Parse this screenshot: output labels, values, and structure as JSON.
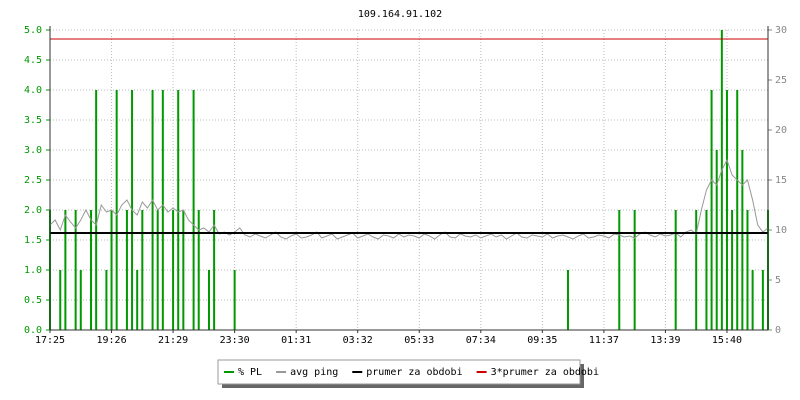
{
  "chart_data": {
    "type": "line",
    "title": "109.164.91.102",
    "categories": [
      "17:25",
      null,
      null,
      null,
      null,
      null,
      null,
      null,
      null,
      null,
      null,
      null,
      "19:26",
      null,
      null,
      null,
      null,
      null,
      null,
      null,
      null,
      null,
      null,
      null,
      "21:29",
      null,
      null,
      null,
      null,
      null,
      null,
      null,
      null,
      null,
      null,
      null,
      "23:30",
      null,
      null,
      null,
      null,
      null,
      null,
      null,
      null,
      null,
      null,
      null,
      "01:31",
      null,
      null,
      null,
      null,
      null,
      null,
      null,
      null,
      null,
      null,
      null,
      "03:32",
      null,
      null,
      null,
      null,
      null,
      null,
      null,
      null,
      null,
      null,
      null,
      "05:33",
      null,
      null,
      null,
      null,
      null,
      null,
      null,
      null,
      null,
      null,
      null,
      "07:34",
      null,
      null,
      null,
      null,
      null,
      null,
      null,
      null,
      null,
      null,
      null,
      "09:35",
      null,
      null,
      null,
      null,
      null,
      null,
      null,
      null,
      null,
      null,
      null,
      "11:37",
      null,
      null,
      null,
      null,
      null,
      null,
      null,
      null,
      null,
      null,
      null,
      "13:39",
      null,
      null,
      null,
      null,
      null,
      null,
      null,
      null,
      null,
      null,
      null,
      "15:40",
      null,
      null,
      null,
      null,
      null,
      null,
      null,
      null
    ],
    "series": [
      {
        "name": "% PL",
        "color": "#009900",
        "type": "bar",
        "values": [
          2,
          0,
          1,
          2,
          0,
          2,
          1,
          0,
          2,
          4,
          0,
          1,
          2,
          4,
          0,
          2,
          4,
          1,
          2,
          0,
          4,
          2,
          4,
          0,
          2,
          4,
          2,
          0,
          4,
          2,
          0,
          1,
          2,
          0,
          0,
          0,
          1,
          0,
          0,
          0,
          0,
          0,
          0,
          0,
          0,
          0,
          0,
          0,
          0,
          0,
          0,
          0,
          0,
          0,
          0,
          0,
          0,
          0,
          0,
          0,
          0,
          0,
          0,
          0,
          0,
          0,
          0,
          0,
          0,
          0,
          0,
          0,
          0,
          0,
          0,
          0,
          0,
          0,
          0,
          0,
          0,
          0,
          0,
          0,
          0,
          0,
          0,
          0,
          0,
          0,
          0,
          0,
          0,
          0,
          0,
          0,
          0,
          0,
          0,
          0,
          0,
          1,
          0,
          0,
          0,
          0,
          0,
          0,
          0,
          0,
          0,
          2,
          0,
          0,
          2,
          0,
          0,
          0,
          0,
          0,
          0,
          0,
          2,
          0,
          0,
          0,
          2,
          0,
          2,
          4,
          3,
          5,
          4,
          2,
          4,
          3,
          2,
          1,
          0,
          1,
          2
        ]
      },
      {
        "name": "avg ping",
        "color": "#999999",
        "type": "line",
        "axis": "y2",
        "values": [
          10.5,
          11,
          10,
          11.5,
          10.8,
          10.2,
          11,
          12,
          11,
          10.5,
          12.5,
          11.8,
          12,
          11.5,
          12.5,
          13,
          12,
          11.5,
          12.8,
          12.2,
          13,
          12,
          12.5,
          11.8,
          12.2,
          11.8,
          12,
          11,
          10.5,
          10,
          10.2,
          9.8,
          10.5,
          9.6,
          9.8,
          9.5,
          9.8,
          10.2,
          9.5,
          9.3,
          9.6,
          9.4,
          9.2,
          9.5,
          9.8,
          9.3,
          9.1,
          9.4,
          9.6,
          9.2,
          9.3,
          9.5,
          9.8,
          9.2,
          9.4,
          9.6,
          9.1,
          9.3,
          9.5,
          9.7,
          9.2,
          9.4,
          9.6,
          9.3,
          9.1,
          9.5,
          9.4,
          9.2,
          9.6,
          9.3,
          9.5,
          9.4,
          9.2,
          9.6,
          9.4,
          9.1,
          9.5,
          9.8,
          9.3,
          9.2,
          9.6,
          9.4,
          9.3,
          9.5,
          9.2,
          9.4,
          9.6,
          9.3,
          9.5,
          9.1,
          9.4,
          9.7,
          9.3,
          9.2,
          9.5,
          9.4,
          9.3,
          9.6,
          9.2,
          9.4,
          9.5,
          9.3,
          9.1,
          9.4,
          9.6,
          9.2,
          9.3,
          9.5,
          9.4,
          9.2,
          9.6,
          9.5,
          9.3,
          9.4,
          9.2,
          9.6,
          9.8,
          9.5,
          9.3,
          9.6,
          9.4,
          9.5,
          9.7,
          9.3,
          9.8,
          10,
          9.6,
          12,
          14,
          15,
          14.5,
          16,
          17,
          15.5,
          15,
          14.5,
          15,
          13,
          10.5,
          9.8,
          10.2
        ]
      },
      {
        "name": "prumer za obdobi",
        "color": "#000000",
        "type": "hline",
        "axis": "y2",
        "value": 9.7
      },
      {
        "name": "3*prumer za obdobi",
        "color": "#cc0000",
        "type": "hline",
        "axis": "y2",
        "value": 29.1
      }
    ],
    "ylim": [
      0,
      5
    ],
    "yticks": [
      {
        "value": 0,
        "label": "0.0"
      },
      0.5,
      {
        "value": 1,
        "label": "1.0"
      },
      1.5,
      {
        "value": 2,
        "label": "2.0"
      },
      2.5,
      {
        "value": 3,
        "label": "3.0"
      },
      3.5,
      {
        "value": 4,
        "label": "4.0"
      },
      4.5,
      {
        "value": 5,
        "label": "5.0"
      }
    ],
    "y2lim": [
      0,
      30
    ],
    "y2ticks": [
      0,
      5,
      10,
      15,
      20,
      25,
      30
    ],
    "grid": true
  }
}
